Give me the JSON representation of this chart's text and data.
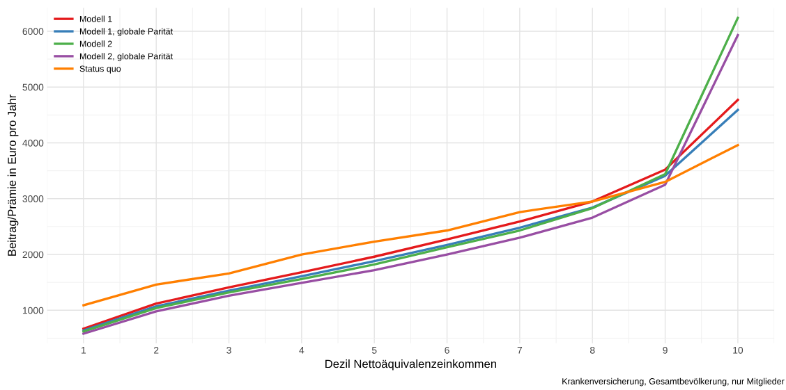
{
  "chart_data": {
    "type": "line",
    "xlabel": "Dezil Nettoäquivalenzeinkommen",
    "ylabel": "Beitrag/Prämie in Euro pro Jahr",
    "x": [
      1,
      2,
      3,
      4,
      5,
      6,
      7,
      8,
      9,
      10
    ],
    "xlim": [
      0.55,
      10.45
    ],
    "xticks": [
      1,
      2,
      3,
      4,
      5,
      6,
      7,
      8,
      9,
      10
    ],
    "ylim": [
      410,
      6420
    ],
    "yticks": [
      1000,
      2000,
      3000,
      4000,
      5000,
      6000
    ],
    "grid": true,
    "legend": "top left",
    "line_style": "solid",
    "marker": "none",
    "annotations": [
      "Krankenversicherung, Gesamtbevölkerung, nur Mitglieder"
    ],
    "series": [
      {
        "name": "Modell 1",
        "color": "#e41a1c",
        "values": [
          670,
          1120,
          1410,
          1680,
          1960,
          2270,
          2590,
          2950,
          3520,
          4770
        ]
      },
      {
        "name": "Modell 1, globale Parität",
        "color": "#377eb8",
        "values": [
          640,
          1070,
          1350,
          1610,
          1880,
          2170,
          2480,
          2840,
          3410,
          4590
        ]
      },
      {
        "name": "Modell 2",
        "color": "#4daf4a",
        "values": [
          620,
          1040,
          1320,
          1560,
          1820,
          2130,
          2430,
          2830,
          3440,
          6240
        ]
      },
      {
        "name": "Modell 2, globale Parität",
        "color": "#984ea3",
        "values": [
          580,
          980,
          1260,
          1490,
          1720,
          2000,
          2300,
          2660,
          3250,
          5930
        ]
      },
      {
        "name": "Status quo",
        "color": "#ff7f00",
        "values": [
          1090,
          1460,
          1660,
          2000,
          2230,
          2430,
          2760,
          2950,
          3300,
          3960
        ]
      }
    ]
  }
}
